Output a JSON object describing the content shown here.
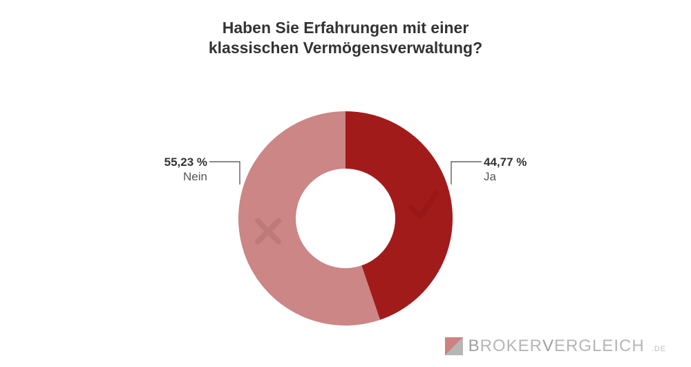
{
  "title_line1": "Haben Sie Erfahrungen mit einer",
  "title_line2": "klassischen Vermögensverwaltung?",
  "chart": {
    "type": "donut",
    "outer_radius": 155,
    "inner_radius": 72,
    "background_color": "#ffffff",
    "slices": [
      {
        "key": "ja",
        "label": "Ja",
        "percent_text": "44,77 %",
        "value": 44.77,
        "color": "#a21b1b",
        "icon": "check"
      },
      {
        "key": "nein",
        "label": "Nein",
        "percent_text": "55,23 %",
        "value": 55.23,
        "color": "#cb8685",
        "icon": "cross"
      }
    ],
    "icon_color": "#8f1414",
    "icon_color_light": "#b56f6f",
    "leader_color": "#444444",
    "title_color": "#333333",
    "title_fontsize": 23,
    "label_fontsize": 17
  },
  "brand": {
    "name_strong": "B",
    "name_rest1": "ROKER",
    "name_strong2": "V",
    "name_rest2": "ERGLEICH",
    "tld": ".DE",
    "logo_color_a": "#b6b6b6",
    "logo_color_b": "#a21b1b"
  }
}
